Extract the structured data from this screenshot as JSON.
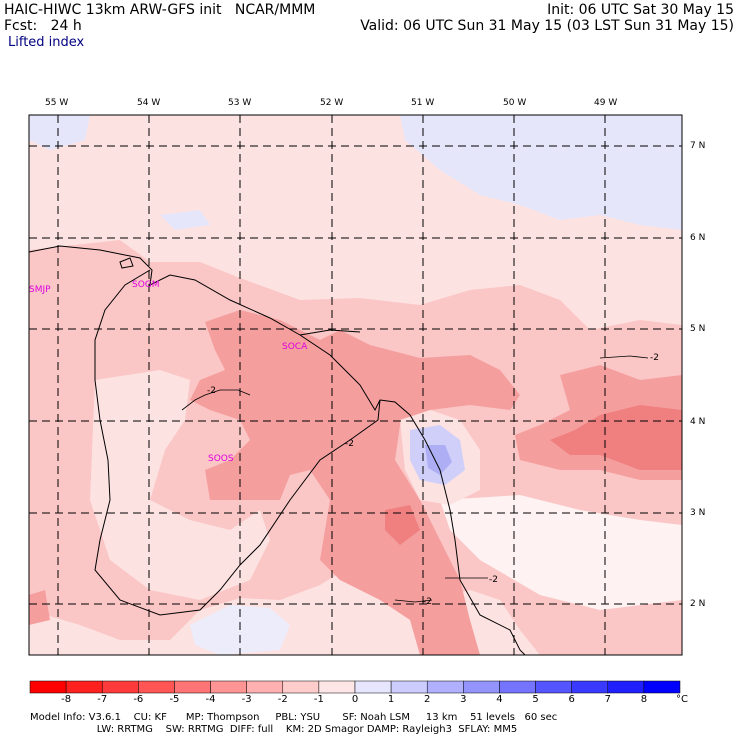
{
  "header": {
    "title": "HAIC-HIWC 13km ARW-GFS init   NCAR/MMM",
    "fcst": "Fcst:   24 h",
    "field": "Lifted index",
    "init": "Init: 06 UTC Sat 30 May 15",
    "valid": "Valid: 06 UTC Sun 31 May 15 (03 LST Sun 31 May 15)"
  },
  "map": {
    "lon_labels": [
      "55 W",
      "54 W",
      "53 W",
      "52 W",
      "51 W",
      "50 W",
      "49 W"
    ],
    "lat_labels": [
      "7 N",
      "6 N",
      "5 N",
      "4 N",
      "3 N",
      "2 N"
    ],
    "stations": [
      "SMJP",
      "SOGM",
      "SOCA",
      "SOOS"
    ],
    "contour_labels": [
      "-2",
      "-2",
      "-2",
      "-2",
      "-2"
    ]
  },
  "colorbar": {
    "unit": "°C",
    "ticks": [
      "-8",
      "-7",
      "-6",
      "-5",
      "-4",
      "-3",
      "-2",
      "-1",
      "0",
      "1",
      "2",
      "3",
      "4",
      "5",
      "6",
      "7",
      "8"
    ],
    "colors": [
      "#ff0000",
      "#ff2020",
      "#ff3a3a",
      "#ff5555",
      "#ff7474",
      "#ff9494",
      "#ffb0b0",
      "#ffcccc",
      "#ffe6e6",
      "#e6e6ff",
      "#ccccff",
      "#b0b0ff",
      "#9494ff",
      "#7474ff",
      "#5555ff",
      "#3a3aff",
      "#2020ff",
      "#0000ff"
    ]
  },
  "model_info": {
    "line1": "Model Info: V3.6.1    CU: KF      MP: Thompson     PBL: YSU       SF: Noah LSM     13 km    51 levels   60 sec",
    "line2": "                     LW: RRTMG    SW: RRTMG  DIFF: full    KM: 2D Smagor DAMP: Rayleigh3  SFLAY: MM5"
  }
}
